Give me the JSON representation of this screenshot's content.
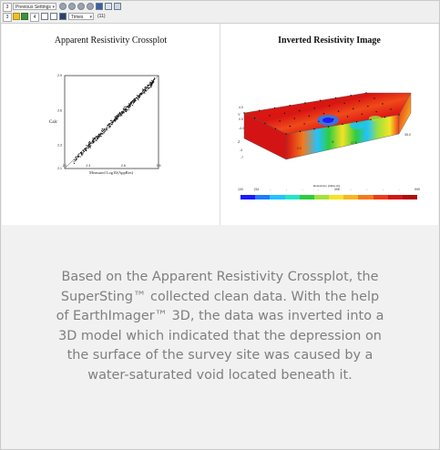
{
  "toolbar": {
    "view_number": "3",
    "settings_select": "Previous Settings",
    "row2_number1": "3",
    "row2_number2": "4",
    "font_select": "Times",
    "font_size": "(11)"
  },
  "left_panel": {
    "title": "Apparent Resistivity Crossplot",
    "ylabel": "Calc",
    "xlabel": "Measured Log10(AppRes)"
  },
  "right_panel": {
    "title": "Inverted Resistivity Image",
    "colorbar_title": "Resistivity (Ohm-m)",
    "colorbar_ticks": [
      "100",
      "251",
      "-",
      "-",
      "-",
      "-",
      "398",
      "-",
      "-",
      "-",
      "-",
      "999"
    ],
    "axis_labels": {
      "y": "Y",
      "x": "X",
      "z": "Z",
      "y_ticks": [
        "4.0",
        "0.0",
        "-4.0"
      ],
      "x_ticks": [
        "0.0",
        "17.5",
        "35.0"
      ],
      "z_ticks": [
        "-4",
        "-7"
      ]
    }
  },
  "chart_data": [
    {
      "type": "scatter",
      "title": "Apparent Resistivity Crossplot",
      "xlabel": "Measured Log10(AppRes)",
      "ylabel": "Calc",
      "xlim": [
        2.1,
        2.9
      ],
      "ylim": [
        2.1,
        2.9
      ],
      "xticks": [
        "2.1",
        "2.3",
        "2.6",
        "2.9"
      ],
      "yticks": [
        "2.1",
        "2.3",
        "2.6",
        "2.9"
      ],
      "reference_line": "y = x",
      "points_description": "points clustered tightly along the 1:1 line from about 2.2 to 2.85"
    }
  ],
  "caption": [
    "Based on the Apparent Resistivity Crossplot, the",
    "SuperSting™ collected clean data. With the help",
    "of EarthImager™ 3D, the data was inverted into a",
    "3D model which indicated that the depression on",
    "the surface of the survey site was caused by a",
    "water-saturated void located beneath it."
  ],
  "colors": {
    "caption_text": "#7f7f7f",
    "card_bg": "#f1f1f2",
    "panel_bg": "#ffffff",
    "colorbar": [
      "#1a1aff",
      "#1e7bff",
      "#22c3ff",
      "#22e6c8",
      "#2ecc40",
      "#a2e23a",
      "#f5e325",
      "#f7b61e",
      "#f37a1c",
      "#ee3b1a",
      "#d41414",
      "#b00c0c"
    ]
  }
}
